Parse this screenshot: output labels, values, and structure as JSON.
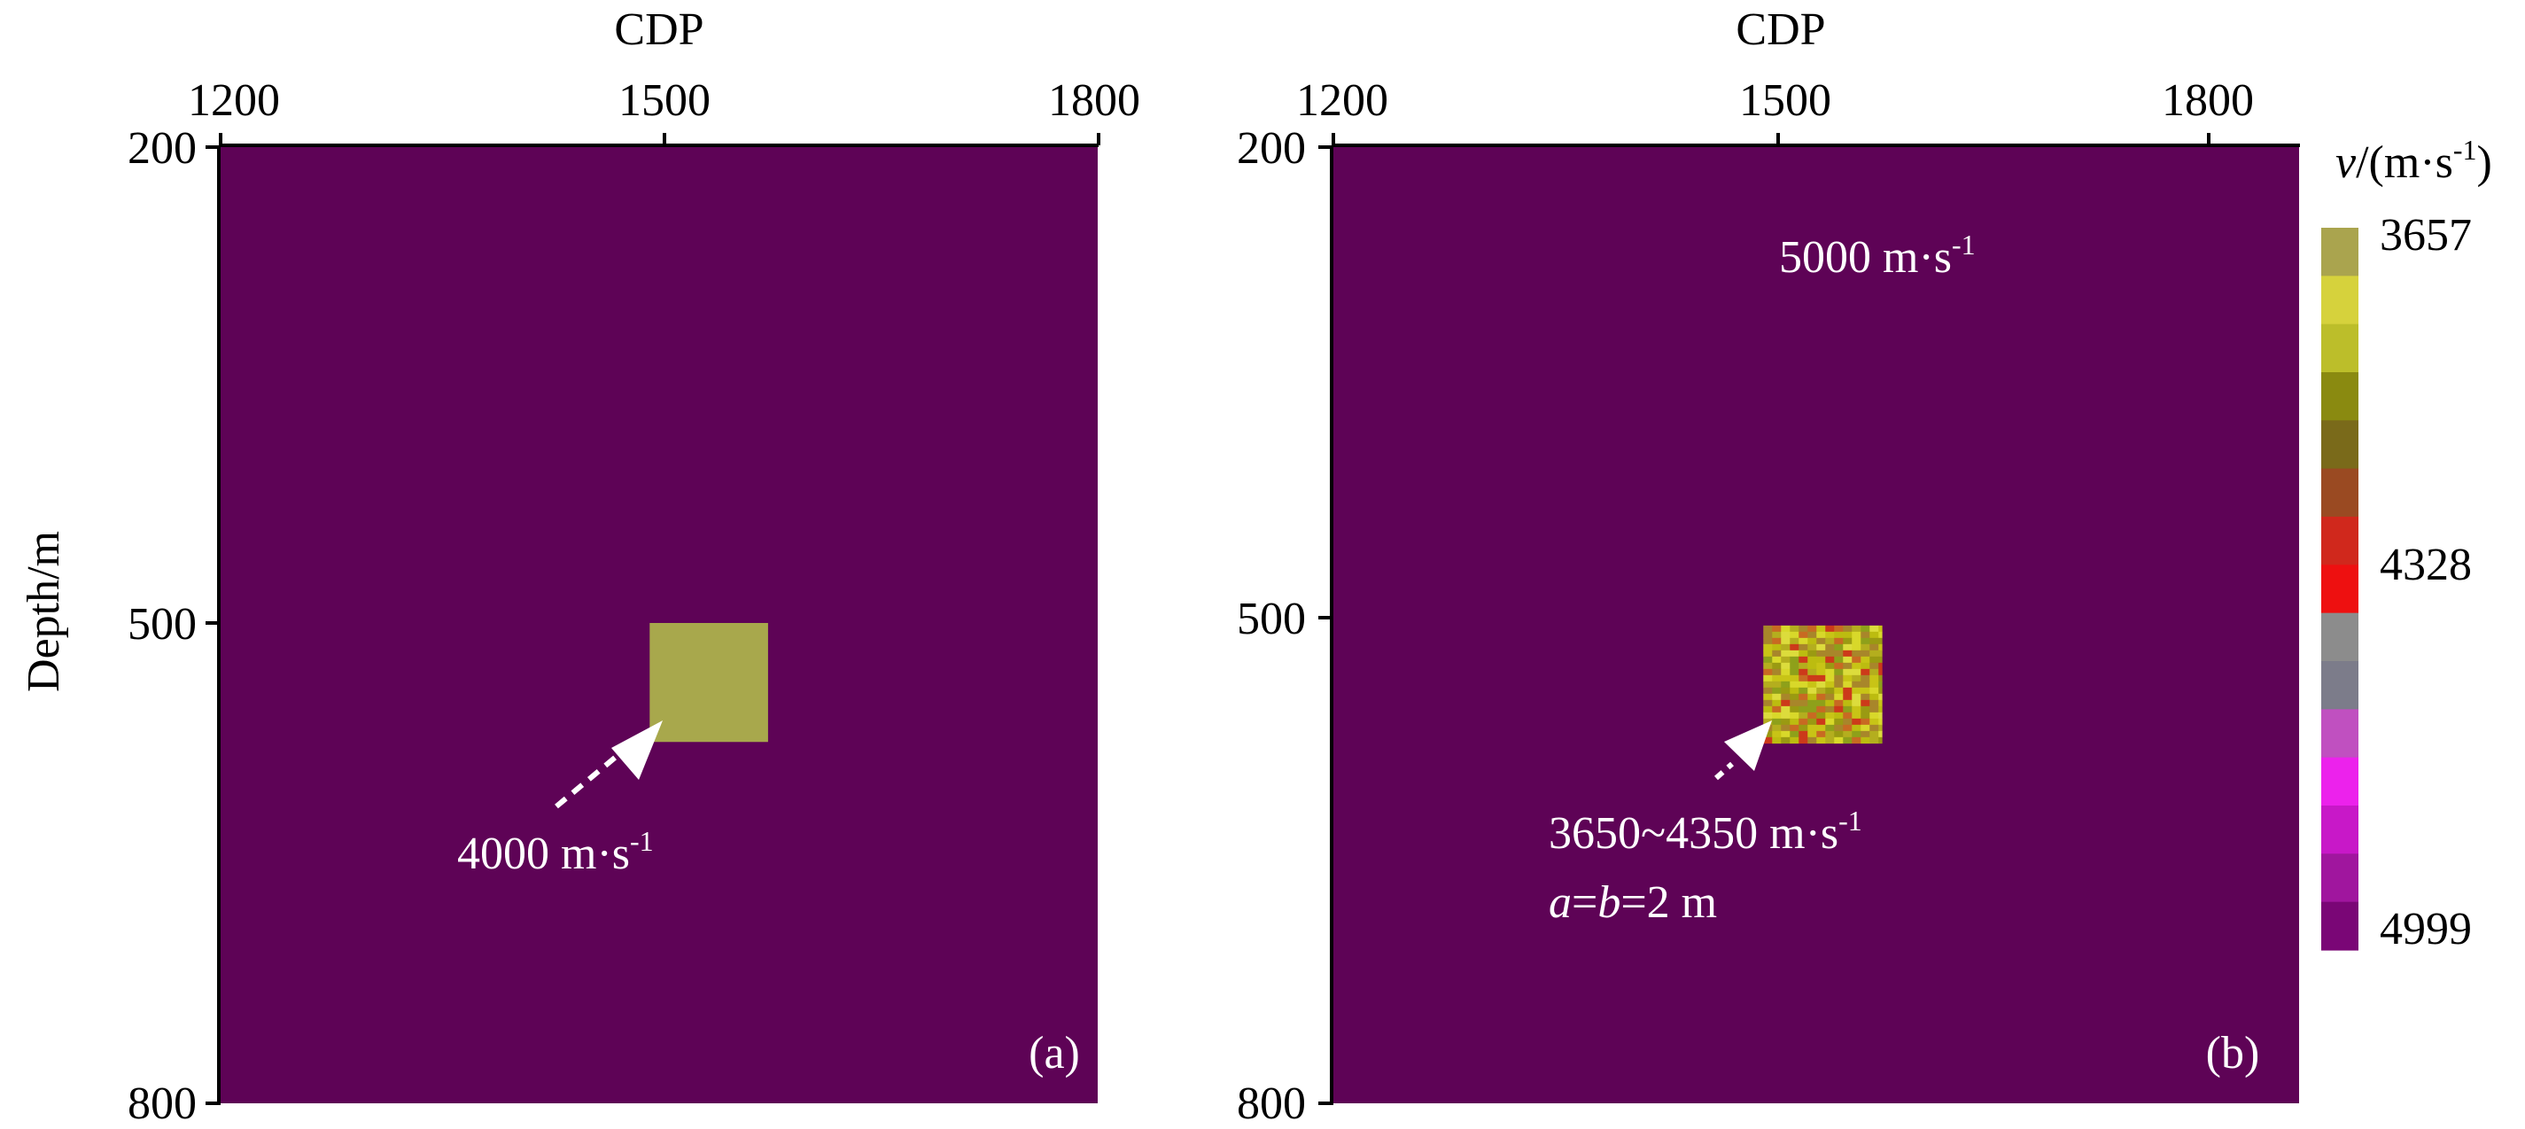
{
  "colors": {
    "background_velocity": "#5e0356",
    "anomaly_a": "#a8a84c",
    "annotation_text": "#ffffff",
    "colormap": [
      "#aaa44e",
      "#d6d23c",
      "#bcbe2a",
      "#8a8a10",
      "#7a6a1a",
      "#9a4a22",
      "#d0281c",
      "#ee1010",
      "#8c8c8c",
      "#7c7c8a",
      "#c050c0",
      "#ec22ec",
      "#c818c8",
      "#a0169e",
      "#7a0676"
    ]
  },
  "chart_data": [
    {
      "type": "heatmap",
      "panel_label": "(a)",
      "xlabel": "CDP",
      "ylabel": "Depth/m",
      "xlim": [
        1200,
        1850
      ],
      "ylim": [
        200,
        800
      ],
      "xticks": [
        "1200",
        "1500",
        "1800"
      ],
      "yticks": [
        "200",
        "500",
        "800"
      ],
      "background": {
        "velocity": 5000
      },
      "anomaly": {
        "cdp_range": [
          1490,
          1570
        ],
        "depth_range": [
          500,
          575
        ],
        "velocity": 4000
      },
      "annotations": [
        {
          "text": "4000 m·s",
          "sup": "-1"
        }
      ]
    },
    {
      "type": "heatmap",
      "panel_label": "(b)",
      "xlabel": "CDP",
      "ylabel": "",
      "xlim": [
        1200,
        1850
      ],
      "ylim": [
        200,
        800
      ],
      "xticks": [
        "1200",
        "1500",
        "1800"
      ],
      "yticks": [
        "200",
        "500",
        "800"
      ],
      "background": {
        "velocity": 5000
      },
      "anomaly": {
        "cdp_range": [
          1490,
          1570
        ],
        "depth_range": [
          505,
          580
        ],
        "velocity_range": [
          3650,
          4350
        ],
        "a": 2,
        "b": 2
      },
      "annotations": [
        {
          "text": "5000 m·s",
          "sup": "-1"
        },
        {
          "text": "3650~4350 m·s",
          "sup": "-1"
        },
        {
          "text_parts": [
            "a",
            "=",
            "b",
            "=2 m"
          ]
        }
      ],
      "colorbar": {
        "title_italic": "v",
        "title_rest": "/(m·s",
        "title_sup": "-1",
        "title_close": ")",
        "ticks": [
          "3657",
          "4328",
          "4999"
        ],
        "range": [
          3657,
          4999
        ]
      }
    }
  ]
}
